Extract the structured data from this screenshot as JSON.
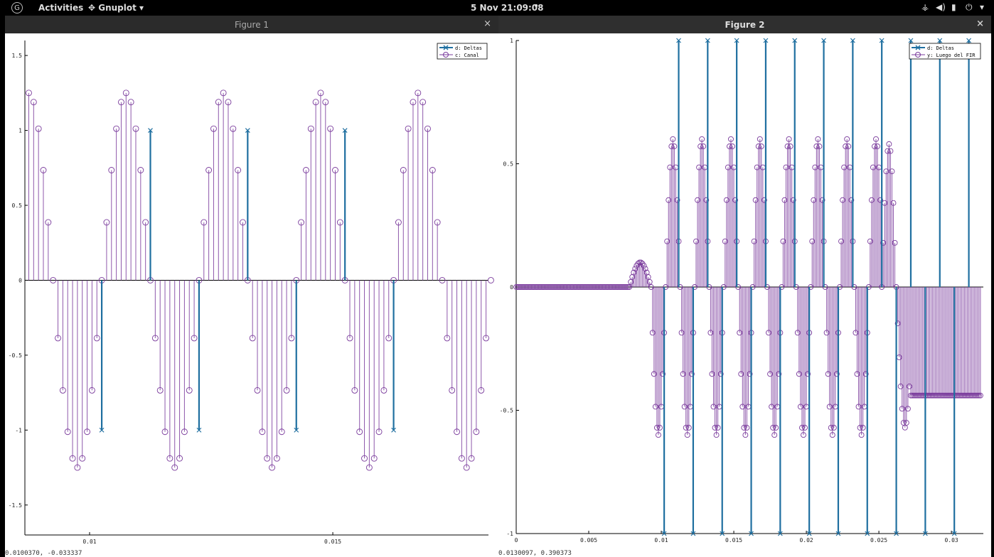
{
  "topbar": {
    "logo_icon": "gnome-logo-icon",
    "activities": "Activities",
    "app_icon": "gnuplot-app-icon",
    "app_name": "Gnuplot ▾",
    "clock": "5 Nov 21:09:08",
    "notification_dot": "•",
    "tray_icons": [
      "network-icon",
      "volume-icon",
      "battery-icon",
      "power-icon"
    ]
  },
  "colors": {
    "stem_blue": "#1f6fa0",
    "stem_purple": "#7a3b9c",
    "stem_purple_light": "#caa6d8"
  },
  "figure1": {
    "title": "Figure 1",
    "close_label": "×",
    "coords": "0.0100370,  -0.033337",
    "chart_data": {
      "type": "stem",
      "xlim": [
        0.00867,
        0.0182
      ],
      "ylim": [
        -1.7,
        1.6
      ],
      "yticks": [
        -1.5,
        -1,
        -0.5,
        0,
        0.5,
        1,
        1.5
      ],
      "ytick_labels": [
        "-1.5",
        "-1",
        "-0.5",
        "0",
        "0.5",
        "1",
        "1.5"
      ],
      "xticks": [
        0.01,
        0.015
      ],
      "xtick_labels": [
        "0.01",
        "0.015"
      ],
      "legend_position": "top-right",
      "series": [
        {
          "name": "d: Deltas",
          "marker": "x",
          "color": "#1f6fa0",
          "x": [
            0.01025,
            0.01125,
            0.01225,
            0.01325,
            0.01425,
            0.01525,
            0.01625
          ],
          "y": [
            -1,
            1,
            -1,
            1,
            -1,
            1,
            -1
          ]
        },
        {
          "name": "c: Canal",
          "marker": "o",
          "color": "#7a3b9c",
          "x_start": 0.00875,
          "x_step": 0.0001,
          "count": 96,
          "amplitude": 1.25,
          "period": 0.002,
          "phase_x": 0.00925
        }
      ]
    }
  },
  "figure2": {
    "title": "Figure 2",
    "close_label": "×",
    "coords": "0.0130097,  0.390373",
    "chart_data": {
      "type": "stem",
      "xlim": [
        0,
        0.0322
      ],
      "ylim": [
        -1,
        1
      ],
      "yticks": [
        -1,
        -0.5,
        0,
        0.5,
        1
      ],
      "ytick_labels": [
        "-1",
        "-0.5",
        "0",
        "0.5",
        "1"
      ],
      "xticks": [
        0,
        0.005,
        0.01,
        0.015,
        0.02,
        0.025,
        0.03
      ],
      "xtick_labels": [
        "0",
        "0.005",
        "0.01",
        "0.015",
        "0.02",
        "0.025",
        "0.03"
      ],
      "legend_position": "top-right",
      "series": [
        {
          "name": "d: Deltas",
          "marker": "x",
          "color": "#1f6fa0",
          "x": [
            0.0102,
            0.0112,
            0.0122,
            0.0132,
            0.0142,
            0.0152,
            0.0162,
            0.0172,
            0.0182,
            0.0192,
            0.0202,
            0.0212,
            0.0222,
            0.0232,
            0.0242,
            0.0252,
            0.0262,
            0.0272,
            0.0282,
            0.0292,
            0.0302,
            0.0312
          ],
          "y": [
            -1,
            1,
            -1,
            1,
            -1,
            1,
            -1,
            1,
            -1,
            1,
            -1,
            1,
            -1,
            1,
            -1,
            1,
            -1,
            1,
            -1,
            1,
            -1,
            1
          ]
        },
        {
          "name": "y: Luego del FIR",
          "marker": "o",
          "color": "#7a3b9c",
          "x_start": 0,
          "x_step": 0.0001,
          "count": 321,
          "segments": [
            {
              "from": 0.0,
              "to": 0.0078,
              "value": 0.0
            },
            {
              "from": 0.0078,
              "to": 0.0093,
              "shape": "bump",
              "peak": 0.1
            },
            {
              "from": 0.0093,
              "to": 0.0262,
              "shape": "oscillation",
              "amplitude": 0.6,
              "period": 0.002
            },
            {
              "from": 0.0252,
              "to": 0.0262,
              "shape": "hump",
              "peak": 0.58
            },
            {
              "from": 0.0262,
              "to": 0.0272,
              "shape": "dip",
              "min": -0.57
            },
            {
              "from": 0.0272,
              "to": 0.0322,
              "value": -0.44
            }
          ]
        }
      ]
    }
  }
}
